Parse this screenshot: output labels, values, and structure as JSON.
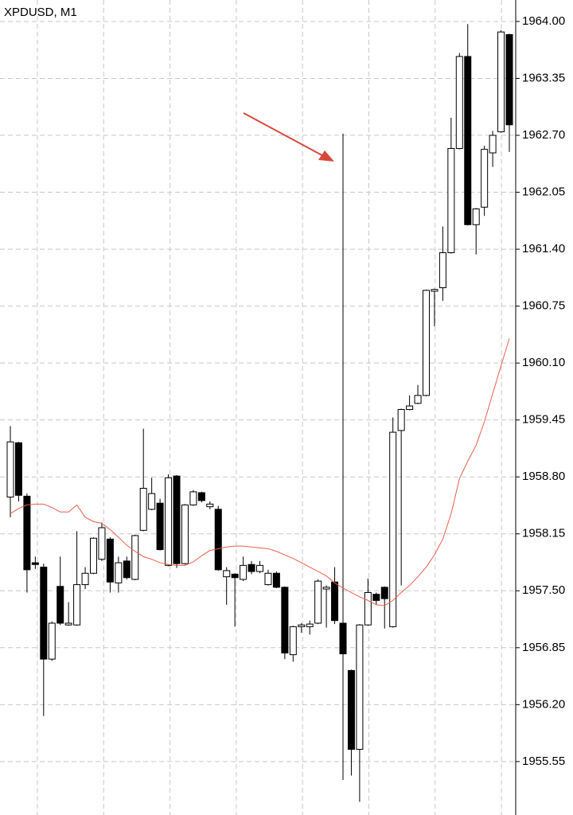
{
  "chart_data": {
    "type": "candlestick",
    "title": "XPDUSD, M1",
    "up_color": "#ffffff",
    "down_color": "#000000",
    "grid": true,
    "ylim": [
      1954.94,
      1964.245
    ],
    "yticks": [
      {
        "value": 1964.0,
        "label": "1964.00"
      },
      1963.35,
      {
        "value": 1962.7,
        "label": "1962.70"
      },
      1962.05,
      {
        "value": 1961.4,
        "label": "1961.40"
      },
      1960.75,
      {
        "value": 1960.1,
        "label": "1960.10"
      },
      1959.45,
      {
        "value": 1958.8,
        "label": "1958.80"
      },
      1958.15,
      {
        "value": 1957.5,
        "label": "1957.50"
      },
      1956.85,
      {
        "value": 1956.2,
        "label": "1956.20"
      },
      1955.55
    ],
    "open": [
      1958.57,
      1959.19,
      1958.58,
      1957.82,
      1957.77,
      1956.72,
      1957.55,
      1957.11,
      1957.11,
      1957.57,
      1957.7,
      1957.86,
      1958.09,
      1957.59,
      1957.84,
      1957.63,
      1958.19,
      1958.43,
      1958.5,
      1957.79,
      1958.81,
      1957.81,
      1958.48,
      1958.62,
      1958.46,
      1958.43,
      1957.66,
      1957.69,
      1957.63,
      1957.8,
      1957.72,
      1957.57,
      1957.7,
      1957.54,
      1956.77,
      1957.09,
      1957.09,
      1957.13,
      1957.52,
      1957.6,
      1957.13,
      1956.59,
      1955.69,
      1957.11,
      1957.46,
      1957.54,
      1957.09,
      1959.33,
      1959.57,
      1959.64,
      1959.73,
      1960.92,
      1960.96,
      1961.36,
      1962.55,
      1963.6,
      1961.68,
      1961.88,
      1962.5,
      1962.74,
      1963.85
    ],
    "high": [
      1959.38,
      1959.2,
      1958.61,
      1957.89,
      1957.81,
      1957.15,
      1957.89,
      1957.37,
      1958.18,
      1957.77,
      1958.11,
      1958.28,
      1958.11,
      1957.89,
      1957.89,
      1958.14,
      1959.35,
      1958.79,
      1958.55,
      1958.83,
      1958.82,
      1958.49,
      1958.65,
      1958.63,
      1958.52,
      1958.47,
      1957.77,
      1957.7,
      1957.89,
      1957.84,
      1957.84,
      1957.74,
      1957.72,
      1957.55,
      1957.1,
      1957.13,
      1957.16,
      1957.63,
      1957.56,
      1957.77,
      1962.72,
      1956.6,
      1957.12,
      1957.64,
      1957.48,
      1957.55,
      1959.48,
      1959.58,
      1959.73,
      1959.85,
      1960.94,
      1960.95,
      1961.66,
      1962.9,
      1963.64,
      1963.97,
      1961.87,
      1962.58,
      1962.75,
      1963.9,
      1963.86
    ],
    "low": [
      1958.34,
      1958.52,
      1957.48,
      1957.75,
      1956.07,
      1956.7,
      1957.11,
      1957.1,
      1957.1,
      1957.52,
      1957.69,
      1957.84,
      1957.48,
      1957.48,
      1957.63,
      1957.62,
      1958.18,
      1958.42,
      1957.96,
      1957.78,
      1957.76,
      1957.8,
      1958.47,
      1958.51,
      1958.43,
      1957.73,
      1957.34,
      1957.09,
      1957.61,
      1957.69,
      1957.7,
      1957.56,
      1957.53,
      1956.72,
      1956.69,
      1957.02,
      1957.0,
      1957.12,
      1957.08,
      1957.12,
      1955.34,
      1955.39,
      1955.09,
      1957.1,
      1957.34,
      1957.07,
      1957.08,
      1957.56,
      1959.56,
      1959.63,
      1959.72,
      1960.52,
      1960.81,
      1961.35,
      1962.54,
      1961.67,
      1961.34,
      1961.78,
      1962.34,
      1962.73,
      1962.51
    ],
    "close": [
      1959.2,
      1958.59,
      1957.74,
      1957.8,
      1956.72,
      1957.13,
      1957.13,
      1957.13,
      1957.57,
      1957.7,
      1958.1,
      1958.22,
      1957.6,
      1957.82,
      1957.65,
      1958.13,
      1958.67,
      1958.61,
      1957.97,
      1958.79,
      1957.81,
      1958.48,
      1958.63,
      1958.53,
      1958.49,
      1957.74,
      1957.73,
      1957.65,
      1957.79,
      1957.72,
      1957.79,
      1957.7,
      1957.54,
      1956.79,
      1957.09,
      1957.11,
      1957.12,
      1957.61,
      1957.54,
      1957.16,
      1956.78,
      1955.69,
      1957.11,
      1957.48,
      1957.39,
      1957.41,
      1959.31,
      1959.57,
      1959.61,
      1959.73,
      1960.93,
      1960.94,
      1961.36,
      1962.55,
      1963.6,
      1961.68,
      1961.86,
      1962.54,
      1962.7,
      1963.88,
      1962.82
    ],
    "ma": {
      "color": "#e8604c",
      "values": [
        1958.38,
        1958.44,
        1958.48,
        1958.49,
        1958.49,
        1958.45,
        1958.4,
        1958.4,
        1958.48,
        1958.34,
        1958.29,
        1958.27,
        1958.2,
        1958.11,
        1958.02,
        1957.95,
        1957.89,
        1957.86,
        1957.82,
        1957.8,
        1957.79,
        1957.79,
        1957.83,
        1957.9,
        1957.96,
        1957.98,
        1958.0,
        1958.01,
        1958.01,
        1958.0,
        1957.99,
        1957.98,
        1957.95,
        1957.91,
        1957.87,
        1957.82,
        1957.77,
        1957.72,
        1957.67,
        1957.59,
        1957.53,
        1957.48,
        1957.43,
        1957.39,
        1957.34,
        1957.33,
        1957.39,
        1957.48,
        1957.56,
        1957.66,
        1957.77,
        1957.91,
        1958.09,
        1958.38,
        1958.78,
        1958.98,
        1959.16,
        1959.43,
        1959.75,
        1960.07,
        1960.38
      ]
    }
  }
}
